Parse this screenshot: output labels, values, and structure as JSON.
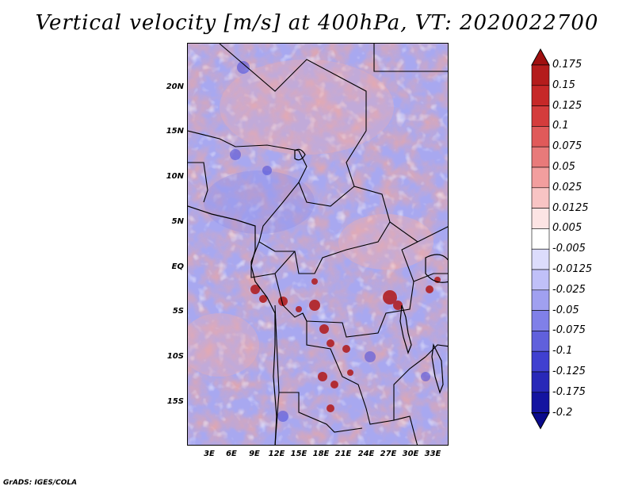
{
  "title": "Vertical velocity [m/s] at 400hPa, VT: 2020022700",
  "footer": "GrADS: IGES/COLA",
  "map": {
    "description_region": "Central Africa",
    "lat_ticks": [
      "20N",
      "15N",
      "10N",
      "5N",
      "EQ",
      "5S",
      "10S",
      "15S"
    ],
    "lon_ticks": [
      "3E",
      "6E",
      "9E",
      "12E",
      "15E",
      "18E",
      "21E",
      "24E",
      "27E",
      "30E",
      "33E"
    ]
  },
  "colorbar": {
    "levels": [
      "0.175",
      "0.15",
      "0.125",
      "0.1",
      "0.075",
      "0.05",
      "0.025",
      "0.0125",
      "0.005",
      "-0.005",
      "-0.0125",
      "-0.025",
      "-0.05",
      "-0.075",
      "-0.1",
      "-0.125",
      "-0.175",
      "-0.2"
    ],
    "colors": [
      "#a01010",
      "#b41c1c",
      "#c62828",
      "#d43c3c",
      "#e05a5a",
      "#e87a7a",
      "#f29e9e",
      "#f8c4c4",
      "#fce4e4",
      "#ffffff",
      "#dcdcfc",
      "#c0c0f8",
      "#a0a0f0",
      "#8080e8",
      "#6060dc",
      "#4040d0",
      "#2828b8",
      "#1414a0",
      "#0a0a8c"
    ]
  }
}
